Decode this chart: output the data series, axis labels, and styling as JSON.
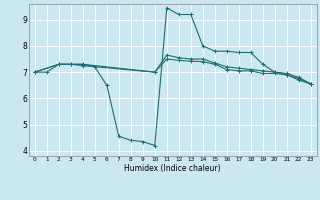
{
  "background_color": "#cbe8f0",
  "grid_color": "#ffffff",
  "line_color": "#1a7070",
  "xlabel": "Humidex (Indice chaleur)",
  "xlim": [
    -0.5,
    23.5
  ],
  "ylim": [
    3.8,
    9.6
  ],
  "yticks": [
    4,
    5,
    6,
    7,
    8,
    9
  ],
  "xticks": [
    0,
    1,
    2,
    3,
    4,
    5,
    6,
    7,
    8,
    9,
    10,
    11,
    12,
    13,
    14,
    15,
    16,
    17,
    18,
    19,
    20,
    21,
    22,
    23
  ],
  "lines": [
    {
      "x": [
        0,
        1,
        2,
        3,
        4,
        5,
        6,
        7,
        8,
        9,
        10,
        11,
        12,
        13,
        14,
        15,
        16,
        17,
        18,
        19,
        20,
        21,
        22,
        23
      ],
      "y": [
        7.0,
        7.0,
        7.3,
        7.3,
        7.3,
        7.2,
        6.5,
        4.55,
        4.4,
        4.35,
        4.2,
        9.45,
        9.2,
        9.2,
        8.0,
        7.8,
        7.8,
        7.75,
        7.75,
        7.3,
        7.0,
        6.9,
        6.7,
        6.55
      ]
    },
    {
      "x": [
        0,
        2,
        3,
        4,
        10,
        11,
        12,
        13,
        14,
        15,
        16,
        17,
        18,
        19,
        20,
        21,
        22,
        23
      ],
      "y": [
        7.0,
        7.3,
        7.3,
        7.3,
        7.0,
        7.65,
        7.55,
        7.5,
        7.5,
        7.35,
        7.2,
        7.15,
        7.1,
        7.05,
        7.0,
        6.95,
        6.8,
        6.55
      ]
    },
    {
      "x": [
        0,
        2,
        3,
        4,
        10,
        11,
        12,
        13,
        14,
        15,
        16,
        17,
        18,
        19,
        20,
        21,
        22,
        23
      ],
      "y": [
        7.0,
        7.3,
        7.3,
        7.25,
        7.0,
        7.5,
        7.45,
        7.42,
        7.4,
        7.3,
        7.1,
        7.05,
        7.05,
        6.95,
        6.95,
        6.9,
        6.75,
        6.55
      ]
    }
  ]
}
